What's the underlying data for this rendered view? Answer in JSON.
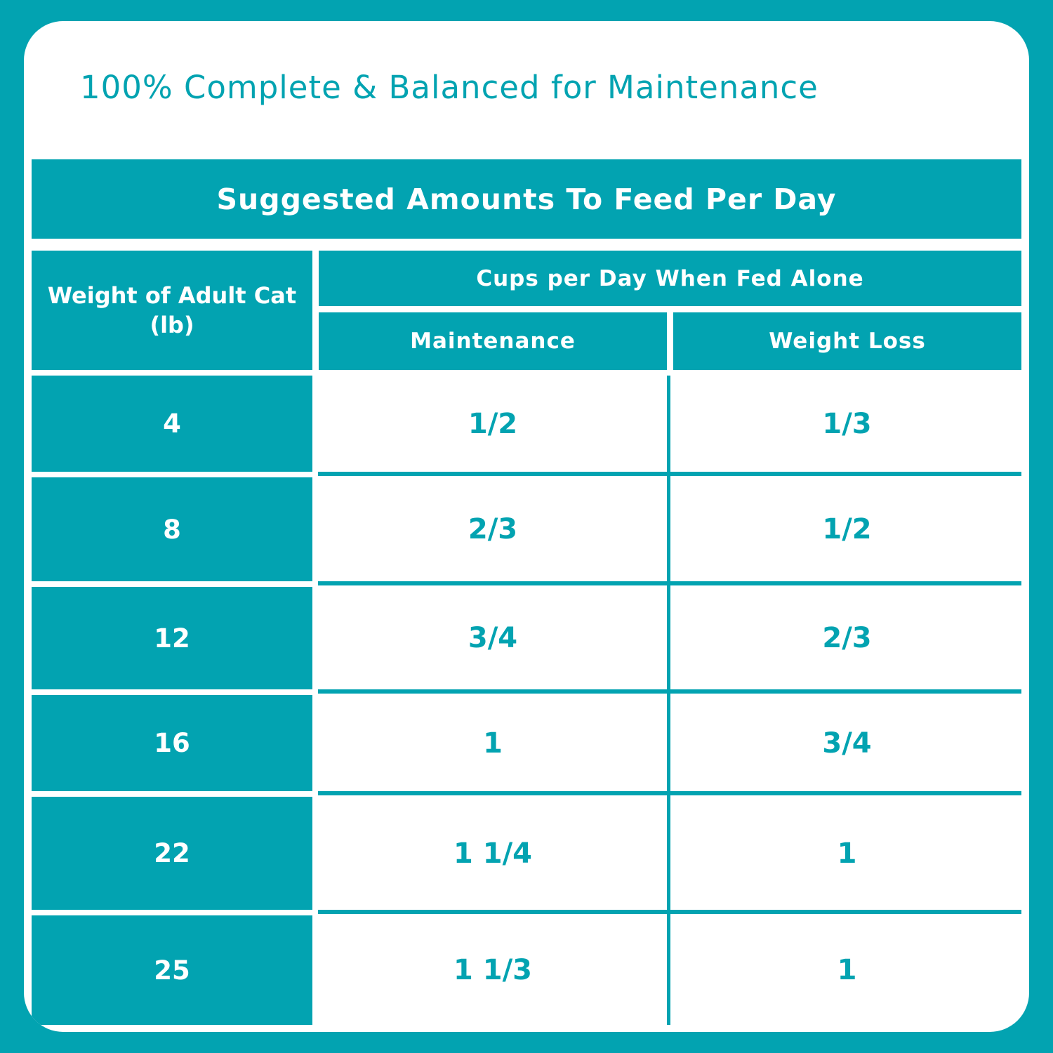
{
  "title": "100% Complete & Balanced for Maintenance",
  "table": {
    "banner": "Suggested Amounts To Feed Per Day",
    "weight_header": "Weight of Adult Cat (lb)",
    "cups_header": "Cups per Day When Fed Alone",
    "maintenance_header": "Maintenance",
    "weight_loss_header": "Weight Loss",
    "rows": [
      {
        "weight": "4",
        "maintenance": "1/2",
        "weight_loss": "1/3"
      },
      {
        "weight": "8",
        "maintenance": "2/3",
        "weight_loss": "1/2"
      },
      {
        "weight": "12",
        "maintenance": "3/4",
        "weight_loss": "2/3"
      },
      {
        "weight": "16",
        "maintenance": "1",
        "weight_loss": "3/4"
      },
      {
        "weight": "22",
        "maintenance": "1 1/4",
        "weight_loss": "1"
      },
      {
        "weight": "25",
        "maintenance": "1 1/3",
        "weight_loss": "1"
      }
    ]
  },
  "colors": {
    "accent": "#02a3b1",
    "background": "#ffffff",
    "header_text": "#ffffff"
  }
}
